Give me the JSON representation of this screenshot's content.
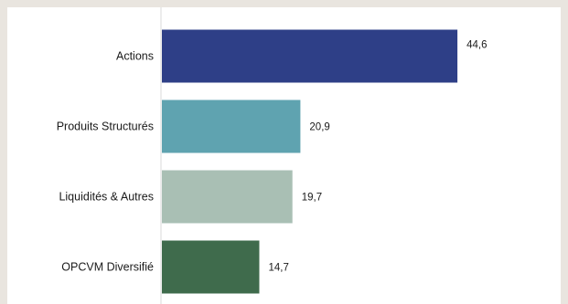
{
  "chart_data": {
    "type": "bar",
    "orientation": "horizontal",
    "categories": [
      "Actions",
      "Produits Structurés",
      "Liquidités & Autres",
      "OPCVM Diversifié"
    ],
    "values": [
      44.6,
      20.9,
      19.7,
      14.7
    ],
    "value_labels": [
      "44,6",
      "20,9",
      "19,7",
      "14,7"
    ],
    "colors": [
      "#2e3f87",
      "#5fa3b0",
      "#a9bfb4",
      "#3f6b4c"
    ],
    "title": "",
    "xlabel": "",
    "ylabel": "",
    "xlim": [
      0,
      45
    ],
    "grid": false,
    "legend": "none"
  }
}
